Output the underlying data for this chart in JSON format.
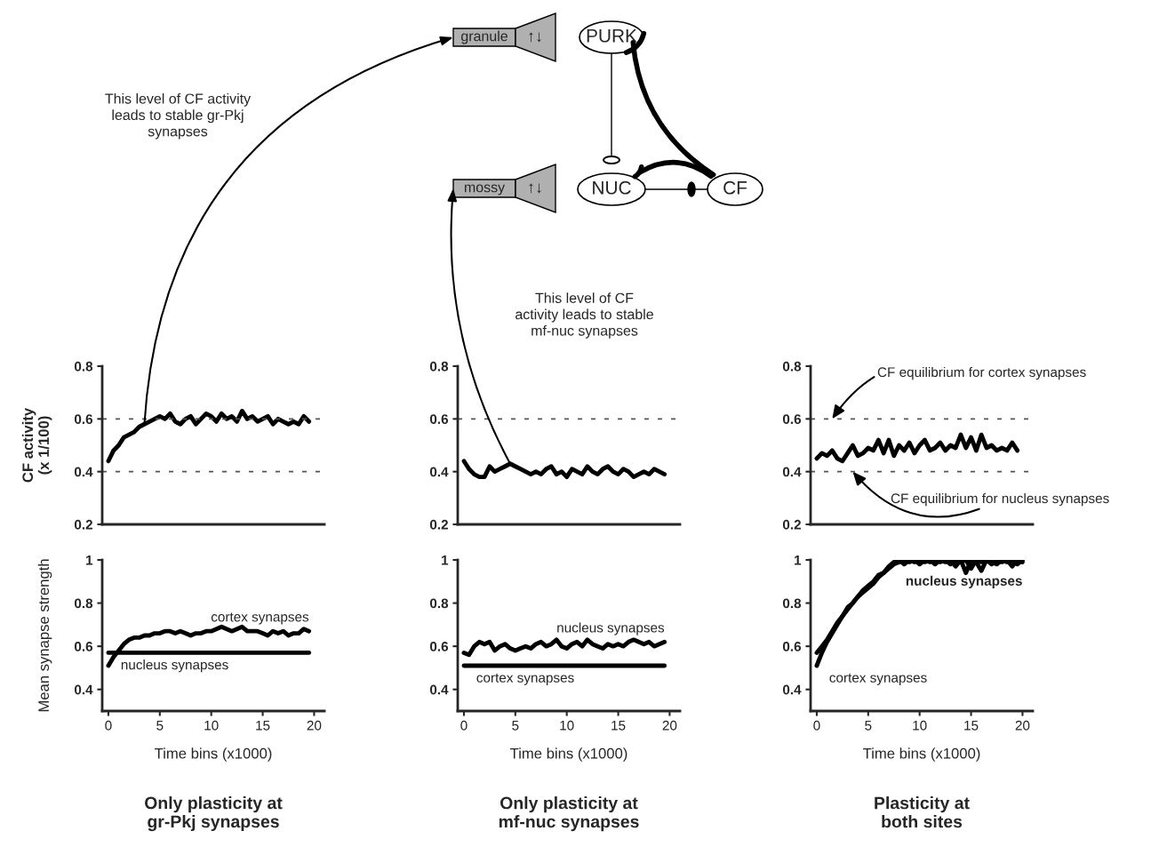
{
  "chart_data": [
    {
      "type": "other",
      "annotations": [
        "granule",
        "↑↓",
        "PURK",
        "mossy",
        "↑↓",
        "NUC",
        "CF"
      ]
    },
    {
      "type": "line",
      "ylabel": "CF activity\n(x 1/100)",
      "xlim": [
        -0.6,
        21
      ],
      "ylim": [
        0.2,
        0.8
      ],
      "yticks": [
        0.2,
        0.4,
        0.6,
        0.8
      ],
      "tick_labels": "y",
      "x": [
        0,
        0.5,
        1,
        1.5,
        2,
        2.5,
        3,
        3.5,
        4,
        4.5,
        5,
        5.5,
        6,
        6.5,
        7,
        7.5,
        8,
        8.5,
        9,
        9.5,
        10,
        10.5,
        11,
        11.5,
        12,
        12.5,
        13,
        13.5,
        14,
        14.5,
        15,
        15.5,
        16,
        16.5,
        17,
        17.5,
        18,
        18.5,
        19,
        19.5
      ],
      "values": [
        0.44,
        0.48,
        0.5,
        0.53,
        0.54,
        0.55,
        0.57,
        0.58,
        0.59,
        0.6,
        0.61,
        0.6,
        0.62,
        0.59,
        0.58,
        0.6,
        0.61,
        0.58,
        0.6,
        0.62,
        0.61,
        0.59,
        0.62,
        0.6,
        0.61,
        0.59,
        0.63,
        0.6,
        0.61,
        0.59,
        0.6,
        0.61,
        0.58,
        0.6,
        0.59,
        0.58,
        0.59,
        0.58,
        0.61,
        0.59
      ],
      "ref_lines": [
        {
          "axis": "y",
          "value": 0.6,
          "line_style": "dashed"
        },
        {
          "axis": "y",
          "value": 0.4,
          "line_style": "dashed"
        }
      ],
      "annotations": [
        "This level of CF activity\nleads to stable gr-Pkj\nsynapses"
      ]
    },
    {
      "type": "line",
      "xlim": [
        -0.6,
        21
      ],
      "ylim": [
        0.2,
        0.8
      ],
      "yticks": [
        0.2,
        0.4,
        0.6,
        0.8
      ],
      "tick_labels": "y",
      "x": [
        0,
        0.5,
        1,
        1.5,
        2,
        2.5,
        3,
        3.5,
        4,
        4.5,
        5,
        5.5,
        6,
        6.5,
        7,
        7.5,
        8,
        8.5,
        9,
        9.5,
        10,
        10.5,
        11,
        11.5,
        12,
        12.5,
        13,
        13.5,
        14,
        14.5,
        15,
        15.5,
        16,
        16.5,
        17,
        17.5,
        18,
        18.5,
        19,
        19.5
      ],
      "values": [
        0.44,
        0.41,
        0.39,
        0.38,
        0.38,
        0.42,
        0.4,
        0.41,
        0.42,
        0.43,
        0.42,
        0.41,
        0.4,
        0.39,
        0.4,
        0.39,
        0.41,
        0.42,
        0.39,
        0.4,
        0.38,
        0.41,
        0.4,
        0.39,
        0.42,
        0.4,
        0.39,
        0.41,
        0.42,
        0.4,
        0.39,
        0.41,
        0.4,
        0.38,
        0.39,
        0.4,
        0.39,
        0.41,
        0.4,
        0.39
      ],
      "ref_lines": [
        {
          "axis": "y",
          "value": 0.6,
          "line_style": "dashed"
        }
      ],
      "annotations": [
        "This level of CF\nactivity leads to stable\nmf-nuc synapses"
      ]
    },
    {
      "type": "line",
      "xlim": [
        -0.6,
        21
      ],
      "ylim": [
        0.2,
        0.8
      ],
      "yticks": [
        0.2,
        0.4,
        0.6,
        0.8
      ],
      "tick_labels": "y",
      "x": [
        0,
        0.5,
        1,
        1.5,
        2,
        2.5,
        3,
        3.5,
        4,
        4.5,
        5,
        5.5,
        6,
        6.5,
        7,
        7.5,
        8,
        8.5,
        9,
        9.5,
        10,
        10.5,
        11,
        11.5,
        12,
        12.5,
        13,
        13.5,
        14,
        14.5,
        15,
        15.5,
        16,
        16.5,
        17,
        17.5,
        18,
        18.5,
        19,
        19.5
      ],
      "values": [
        0.45,
        0.47,
        0.46,
        0.48,
        0.45,
        0.44,
        0.47,
        0.5,
        0.46,
        0.47,
        0.49,
        0.48,
        0.52,
        0.47,
        0.52,
        0.46,
        0.5,
        0.48,
        0.51,
        0.47,
        0.5,
        0.52,
        0.48,
        0.49,
        0.51,
        0.48,
        0.5,
        0.49,
        0.54,
        0.49,
        0.53,
        0.48,
        0.54,
        0.49,
        0.5,
        0.48,
        0.49,
        0.48,
        0.51,
        0.48
      ],
      "ref_lines": [
        {
          "axis": "y",
          "value": 0.6,
          "line_style": "dashed"
        },
        {
          "axis": "y",
          "value": 0.4,
          "line_style": "dashed"
        }
      ],
      "annotations": [
        {
          "text": "CF equilibrium for cortex synapses",
          "x": 1.5,
          "y": 0.6
        },
        {
          "text": "CF equilibrium for nucleus synapses",
          "x": 3.5,
          "y": 0.4
        }
      ]
    },
    {
      "type": "line",
      "ylabel": "Mean synapse strength",
      "xlabel": "Time bins (x1000)",
      "xlim": [
        -0.6,
        21
      ],
      "xticks": [
        0,
        5,
        10,
        15,
        20
      ],
      "ylim": [
        0.3,
        1
      ],
      "yticks": [
        0.4,
        0.6,
        0.8,
        1
      ],
      "x": [
        0,
        0.5,
        1,
        1.5,
        2,
        2.5,
        3,
        3.5,
        4,
        4.5,
        5,
        5.5,
        6,
        6.5,
        7,
        7.5,
        8,
        8.5,
        9,
        9.5,
        10,
        10.5,
        11,
        11.5,
        12,
        12.5,
        13,
        13.5,
        14,
        14.5,
        15,
        15.5,
        16,
        16.5,
        17,
        17.5,
        18,
        18.5,
        19,
        19.5
      ],
      "series": [
        {
          "name": "cortex synapses",
          "color": "#000000",
          "values": [
            0.51,
            0.55,
            0.58,
            0.61,
            0.63,
            0.64,
            0.64,
            0.65,
            0.65,
            0.66,
            0.66,
            0.67,
            0.67,
            0.66,
            0.67,
            0.66,
            0.65,
            0.66,
            0.66,
            0.67,
            0.67,
            0.68,
            0.69,
            0.68,
            0.67,
            0.68,
            0.69,
            0.67,
            0.67,
            0.67,
            0.66,
            0.65,
            0.67,
            0.66,
            0.67,
            0.65,
            0.66,
            0.66,
            0.68,
            0.67
          ]
        },
        {
          "name": "nucleus synapses",
          "color": "#000000",
          "values": [
            0.57,
            0.57,
            0.57,
            0.57,
            0.57,
            0.57,
            0.57,
            0.57,
            0.57,
            0.57,
            0.57,
            0.57,
            0.57,
            0.57,
            0.57,
            0.57,
            0.57,
            0.57,
            0.57,
            0.57,
            0.57,
            0.57,
            0.57,
            0.57,
            0.57,
            0.57,
            0.57,
            0.57,
            0.57,
            0.57,
            0.57,
            0.57,
            0.57,
            0.57,
            0.57,
            0.57,
            0.57,
            0.57,
            0.57,
            0.57
          ]
        }
      ],
      "annotations": [
        "Only plasticity at\ngr-Pkj synapses"
      ]
    },
    {
      "type": "line",
      "xlabel": "Time bins (x1000)",
      "xlim": [
        -0.6,
        21
      ],
      "xticks": [
        0,
        5,
        10,
        15,
        20
      ],
      "ylim": [
        0.3,
        1
      ],
      "yticks": [
        0.4,
        0.6,
        0.8,
        1
      ],
      "x": [
        0,
        0.5,
        1,
        1.5,
        2,
        2.5,
        3,
        3.5,
        4,
        4.5,
        5,
        5.5,
        6,
        6.5,
        7,
        7.5,
        8,
        8.5,
        9,
        9.5,
        10,
        10.5,
        11,
        11.5,
        12,
        12.5,
        13,
        13.5,
        14,
        14.5,
        15,
        15.5,
        16,
        16.5,
        17,
        17.5,
        18,
        18.5,
        19,
        19.5
      ],
      "series": [
        {
          "name": "nucleus synapses",
          "color": "#000000",
          "values": [
            0.57,
            0.56,
            0.6,
            0.62,
            0.61,
            0.62,
            0.58,
            0.6,
            0.61,
            0.59,
            0.58,
            0.59,
            0.6,
            0.59,
            0.61,
            0.62,
            0.6,
            0.61,
            0.63,
            0.6,
            0.59,
            0.61,
            0.62,
            0.6,
            0.63,
            0.61,
            0.6,
            0.59,
            0.61,
            0.6,
            0.61,
            0.6,
            0.62,
            0.63,
            0.62,
            0.61,
            0.62,
            0.6,
            0.61,
            0.62
          ]
        },
        {
          "name": "cortex synapses",
          "color": "#000000",
          "values": [
            0.51,
            0.51,
            0.51,
            0.51,
            0.51,
            0.51,
            0.51,
            0.51,
            0.51,
            0.51,
            0.51,
            0.51,
            0.51,
            0.51,
            0.51,
            0.51,
            0.51,
            0.51,
            0.51,
            0.51,
            0.51,
            0.51,
            0.51,
            0.51,
            0.51,
            0.51,
            0.51,
            0.51,
            0.51,
            0.51,
            0.51,
            0.51,
            0.51,
            0.51,
            0.51,
            0.51,
            0.51,
            0.51,
            0.51,
            0.51
          ]
        }
      ],
      "annotations": [
        "Only plasticity at\nmf-nuc synapses"
      ]
    },
    {
      "type": "line",
      "xlabel": "Time bins (x1000)",
      "xlim": [
        -0.6,
        21
      ],
      "xticks": [
        0,
        5,
        10,
        15,
        20
      ],
      "ylim": [
        0.3,
        1
      ],
      "yticks": [
        0.4,
        0.6,
        0.8,
        1
      ],
      "x": [
        0,
        0.5,
        1,
        1.5,
        2,
        2.5,
        3,
        3.5,
        4,
        4.5,
        5,
        5.5,
        6,
        6.5,
        7,
        7.5,
        8,
        8.5,
        9,
        9.5,
        10,
        10.5,
        11,
        11.5,
        12,
        12.5,
        13,
        13.5,
        14,
        14.5,
        15,
        15.5,
        16,
        16.5,
        17,
        17.5,
        18,
        18.5,
        19,
        19.5,
        20
      ],
      "series": [
        {
          "name": "nucleus synapses",
          "color": "#000000",
          "values": [
            0.57,
            0.6,
            0.63,
            0.67,
            0.71,
            0.74,
            0.77,
            0.8,
            0.83,
            0.86,
            0.88,
            0.9,
            0.93,
            0.94,
            0.97,
            0.99,
            1.0,
            0.98,
            1.0,
            0.99,
            1.0,
            0.99,
            1.0,
            0.98,
            1.0,
            0.99,
            1.0,
            0.97,
            1.0,
            0.94,
            1.0,
            0.99,
            0.95,
            1.0,
            0.98,
            1.0,
            0.99,
            1.0,
            0.97,
            1.0,
            0.99
          ]
        },
        {
          "name": "cortex synapses",
          "color": "#000000",
          "values": [
            0.51,
            0.57,
            0.62,
            0.66,
            0.7,
            0.74,
            0.78,
            0.8,
            0.83,
            0.85,
            0.87,
            0.89,
            0.92,
            0.94,
            0.96,
            0.98,
            0.99,
            1.0,
            0.99,
            1.0,
            0.98,
            1.0,
            0.99,
            1.0,
            0.99,
            1.0,
            0.98,
            1.0,
            0.99,
            1.0,
            0.96,
            1.0,
            0.99,
            1.0,
            0.99,
            0.98,
            1.0,
            0.99,
            1.0,
            0.98,
            1.0
          ]
        }
      ],
      "annotations": [
        "Plasticity at\nboth sites"
      ]
    }
  ]
}
